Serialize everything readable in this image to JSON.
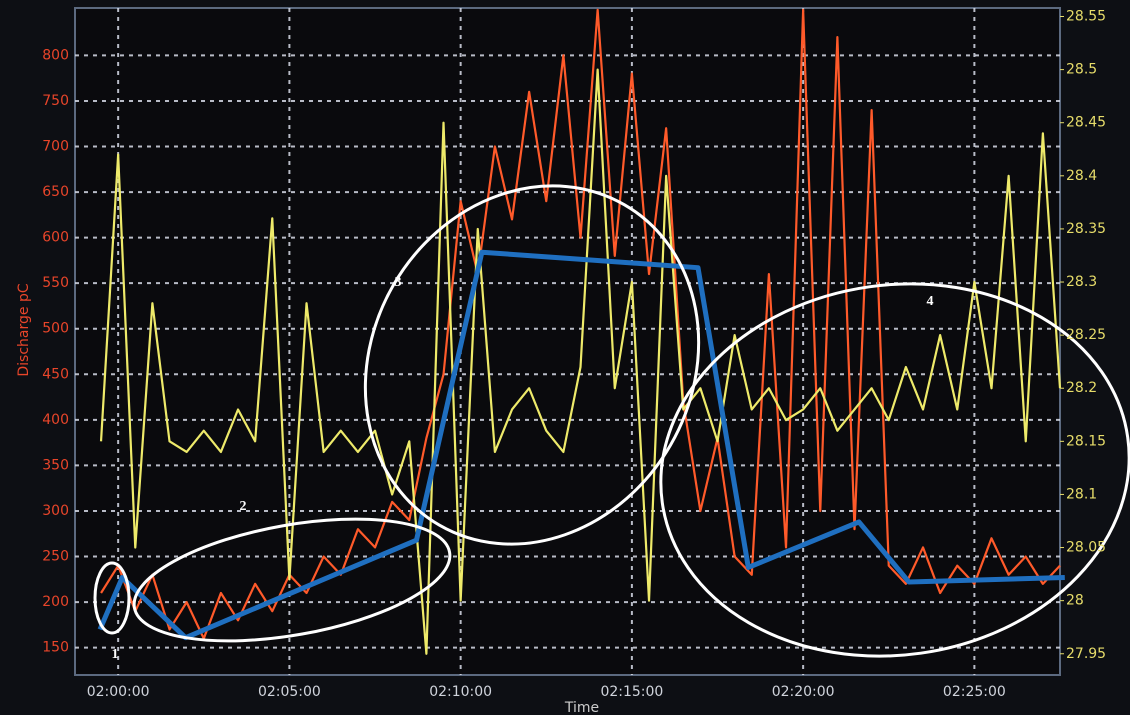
{
  "chart_data": {
    "type": "line",
    "y_label": "Discharge pC",
    "x_label": "Time",
    "xlim": [
      -1.26,
      27.5
    ],
    "ylim": [
      120,
      852
    ],
    "y2lim": [
      27.93,
      28.558
    ],
    "xticks": [
      {
        "value": 0,
        "label": "02:00:00"
      },
      {
        "value": 5,
        "label": "02:05:00"
      },
      {
        "value": 10,
        "label": "02:10:00"
      },
      {
        "value": 15,
        "label": "02:15:00"
      },
      {
        "value": 20,
        "label": "02:20:00"
      },
      {
        "value": 25,
        "label": "02:25:00"
      }
    ],
    "yticks": [
      150,
      200,
      250,
      300,
      350,
      400,
      450,
      500,
      550,
      600,
      650,
      700,
      750,
      800
    ],
    "y2ticks": [
      27.95,
      28,
      28.05,
      28.1,
      28.15,
      28.2,
      28.25,
      28.3,
      28.35,
      28.4,
      28.45,
      28.5,
      28.55
    ],
    "grid": true,
    "annotations": [
      "1",
      "2",
      "3",
      "4"
    ],
    "series": [
      {
        "color": "#ff5a2a",
        "x": [
          -0.5,
          0,
          0.5,
          1,
          1.5,
          2,
          2.5,
          3,
          3.5,
          4,
          4.5,
          5,
          5.5,
          6,
          6.5,
          7,
          7.5,
          8,
          8.5,
          9,
          9.5,
          10,
          10.5,
          11,
          11.5,
          12,
          12.5,
          13,
          13.5,
          14,
          14.5,
          15,
          15.5,
          16,
          16.5,
          17,
          17.5,
          18,
          18.5,
          19,
          19.5,
          20,
          20.5,
          21,
          21.5,
          22,
          22.5,
          23,
          23.5,
          24,
          24.5,
          25,
          25.5,
          26,
          26.5,
          27,
          27.5
        ],
        "values": [
          210,
          240,
          190,
          230,
          170,
          200,
          160,
          210,
          180,
          220,
          190,
          230,
          210,
          250,
          230,
          280,
          260,
          310,
          290,
          380,
          450,
          640,
          560,
          700,
          620,
          760,
          640,
          800,
          600,
          850,
          580,
          780,
          560,
          720,
          420,
          300,
          380,
          250,
          230,
          560,
          260,
          850,
          300,
          820,
          280,
          740,
          240,
          220,
          260,
          210,
          240,
          220,
          270,
          230,
          250,
          220,
          240
        ]
      },
      {
        "color": "#eeea6a",
        "axis": "y2",
        "x": [
          -0.5,
          0,
          0.5,
          1,
          1.5,
          2,
          2.5,
          3,
          3.5,
          4,
          4.5,
          5,
          5.5,
          6,
          6.5,
          7,
          7.5,
          8,
          8.5,
          9,
          9.5,
          10,
          10.5,
          11,
          11.5,
          12,
          12.5,
          13,
          13.5,
          14,
          14.5,
          15,
          15.5,
          16,
          16.5,
          17,
          17.5,
          18,
          18.5,
          19,
          19.5,
          20,
          20.5,
          21,
          21.5,
          22,
          22.5,
          23,
          23.5,
          24,
          24.5,
          25,
          25.5,
          26,
          26.5,
          27,
          27.5
        ],
        "values": [
          28.15,
          28.42,
          28.05,
          28.28,
          28.15,
          28.14,
          28.16,
          28.14,
          28.18,
          28.15,
          28.36,
          28.02,
          28.28,
          28.14,
          28.16,
          28.14,
          28.16,
          28.1,
          28.15,
          27.95,
          28.45,
          28.0,
          28.35,
          28.14,
          28.18,
          28.2,
          28.16,
          28.14,
          28.22,
          28.5,
          28.2,
          28.3,
          28.0,
          28.4,
          28.18,
          28.2,
          28.15,
          28.25,
          28.18,
          28.2,
          28.17,
          28.18,
          28.2,
          28.16,
          28.18,
          28.2,
          28.17,
          28.22,
          28.18,
          28.25,
          28.18,
          28.3,
          28.2,
          28.4,
          28.15,
          28.44,
          28.2
        ]
      },
      {
        "color": "#1f6fc0",
        "x": [
          -0.53,
          0.12,
          0.65,
          1.97,
          8.71,
          10.62,
          16.93,
          18.4,
          21.63,
          23.09,
          27.64
        ],
        "values": [
          170,
          227,
          208,
          161,
          268,
          584,
          567,
          238,
          288,
          222,
          227
        ]
      }
    ]
  }
}
